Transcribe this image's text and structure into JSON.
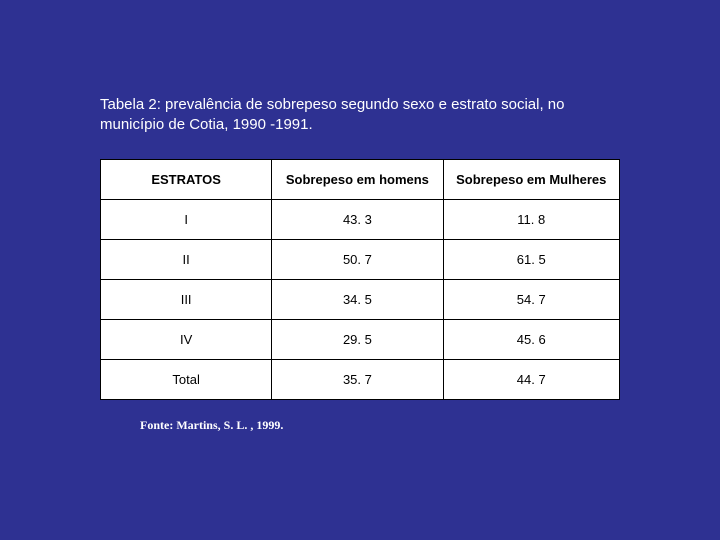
{
  "title": "Tabela 2: prevalência de  sobrepeso  segundo sexo e estrato social, no município de Cotia, 1990 -1991.",
  "table": {
    "columns": [
      "ESTRATOS",
      "Sobrepeso em homens",
      "Sobrepeso em Mulheres"
    ],
    "rows": [
      [
        "I",
        "43. 3",
        "11. 8"
      ],
      [
        "II",
        "50. 7",
        "61. 5"
      ],
      [
        "III",
        "34. 5",
        "54. 7"
      ],
      [
        "IV",
        "29. 5",
        "45. 6"
      ],
      [
        "Total",
        "35. 7",
        "44. 7"
      ]
    ],
    "background_color": "#ffffff",
    "border_color": "#000000",
    "header_font_weight": "bold",
    "cell_fontsize": 13,
    "text_color": "#000000",
    "column_widths": [
      "33%",
      "33%",
      "34%"
    ]
  },
  "source": "Fonte: Martins, S. L. , 1999.",
  "page_background": "#2e3192",
  "title_color": "#ffffff",
  "title_fontsize": 15,
  "source_color": "#ffffff",
  "source_fontsize": 12
}
